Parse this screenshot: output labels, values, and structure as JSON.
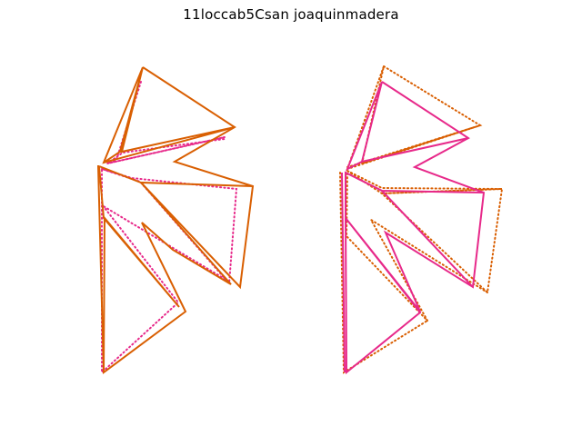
{
  "figure": {
    "title": "11loccab5Csan joaquinmadera"
  },
  "colors": {
    "orange": "#d95f02",
    "magenta": "#e7298a",
    "background": "#ffffff"
  },
  "panels": [
    {
      "name": "left-panel",
      "solid_color": "orange",
      "dotted_color": "magenta"
    },
    {
      "name": "right-panel",
      "solid_color": "magenta",
      "dotted_color": "orange"
    }
  ]
}
